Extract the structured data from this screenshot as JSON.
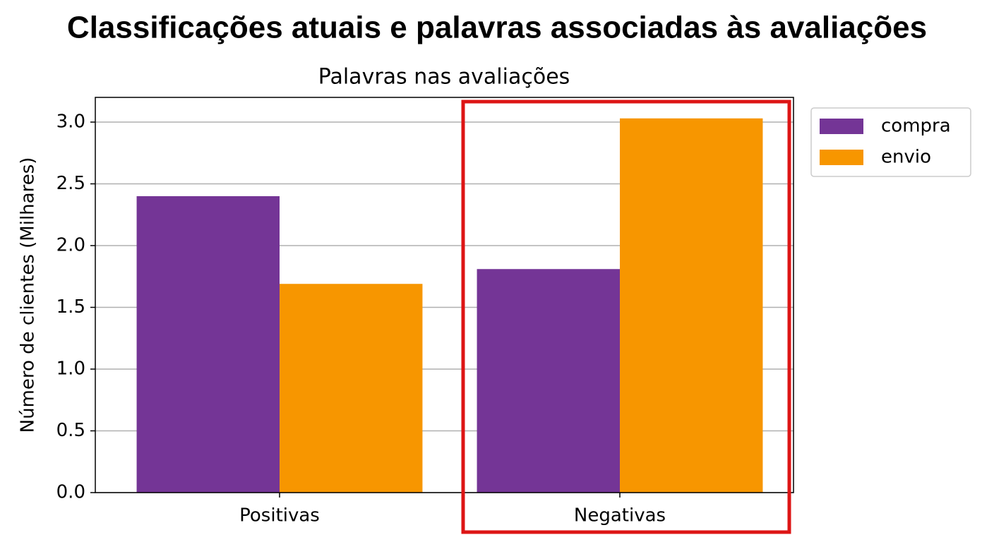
{
  "chart_data": {
    "type": "bar",
    "title": "Classificações atuais e palavras associadas às avaliações",
    "subtitle": "Palavras nas avaliações",
    "y_label": "Número de clientes (Milhares)",
    "categories": [
      "Positivas",
      "Negativas"
    ],
    "series": [
      {
        "name": "compra",
        "color": "#743596",
        "values": [
          2.4,
          1.81
        ]
      },
      {
        "name": "envio",
        "color": "#f79600",
        "values": [
          1.69,
          3.03
        ]
      }
    ],
    "ylim": [
      0,
      3.2
    ],
    "yticks": [
      {
        "value": 0,
        "label": "0.0"
      },
      0.5,
      {
        "value": 1,
        "label": "1.0"
      },
      1.5,
      {
        "value": 2,
        "label": "2.0"
      },
      2.5,
      {
        "value": 3,
        "label": "3.0"
      }
    ],
    "grid": true
  }
}
